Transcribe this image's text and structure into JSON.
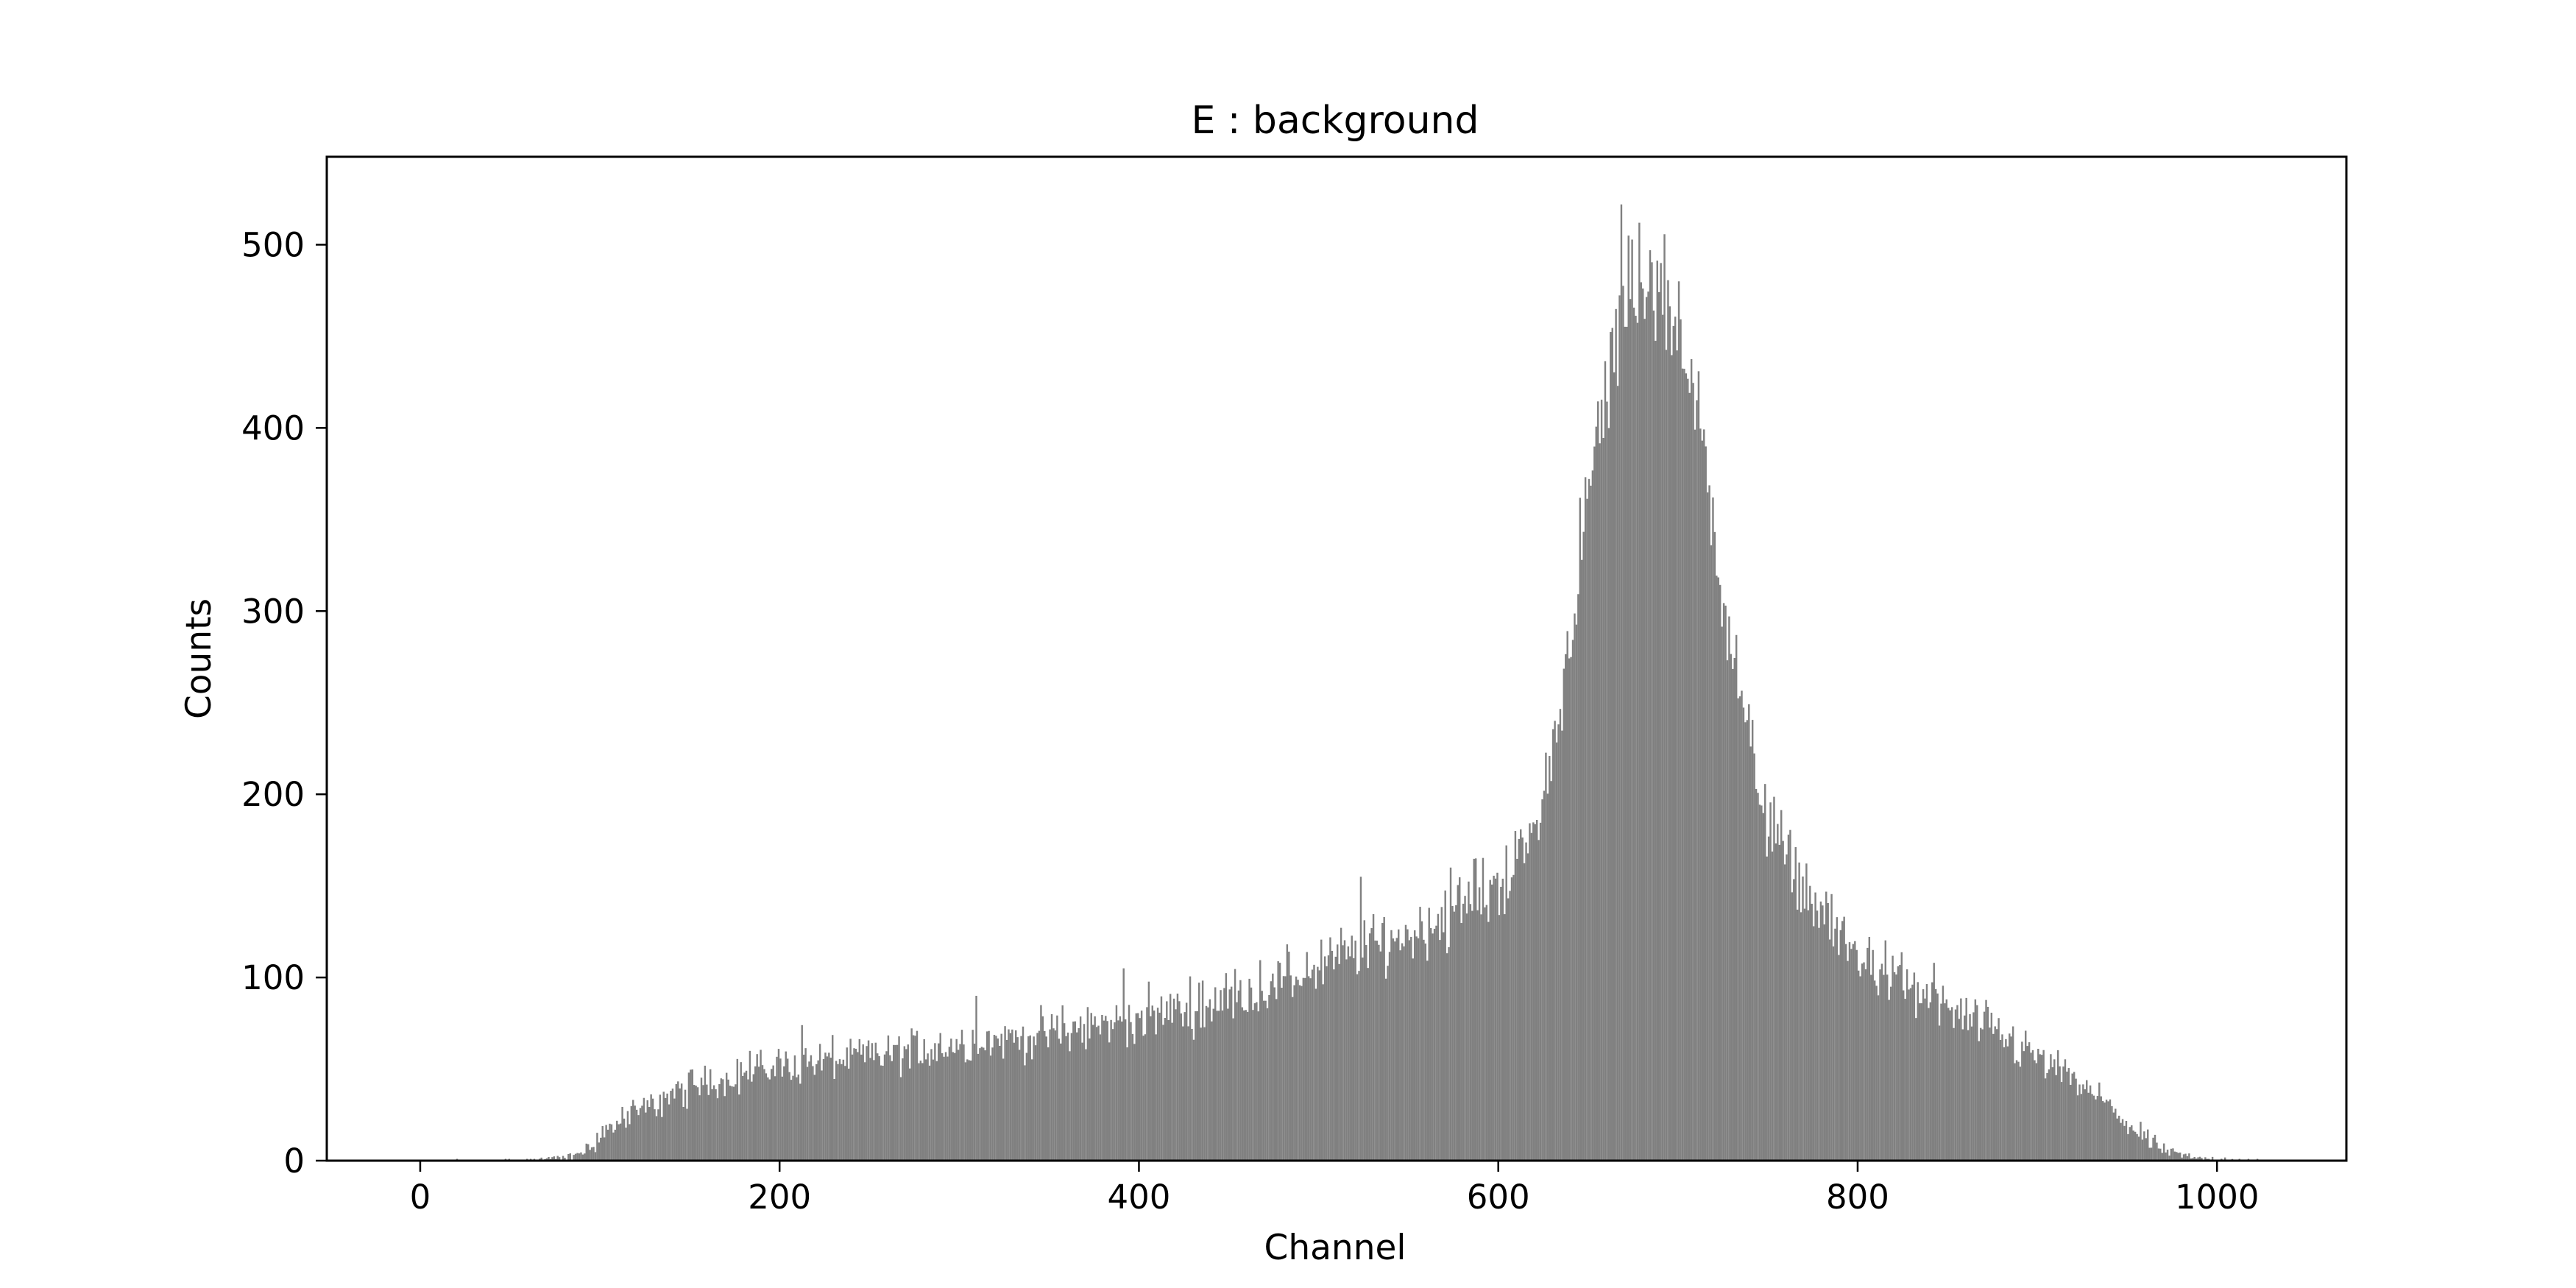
{
  "chart_data": {
    "type": "bar",
    "title": "E : background",
    "xlabel": "Channel",
    "ylabel": "Counts",
    "xlim": [
      -52,
      1072
    ],
    "ylim": [
      0,
      548
    ],
    "xticks": [
      0,
      200,
      400,
      600,
      800,
      1000
    ],
    "yticks": [
      0,
      100,
      200,
      300,
      400,
      500
    ],
    "bar_color": "#808080",
    "grid": false,
    "legend": false,
    "bins": {
      "start": 0,
      "width": 1,
      "count": 1024
    },
    "envelope": [
      [
        0,
        0
      ],
      [
        60,
        0
      ],
      [
        70,
        1
      ],
      [
        85,
        2
      ],
      [
        95,
        8
      ],
      [
        105,
        18
      ],
      [
        120,
        26
      ],
      [
        140,
        36
      ],
      [
        160,
        43
      ],
      [
        180,
        48
      ],
      [
        200,
        52
      ],
      [
        220,
        54
      ],
      [
        240,
        56
      ],
      [
        260,
        58
      ],
      [
        280,
        61
      ],
      [
        300,
        64
      ],
      [
        320,
        66
      ],
      [
        340,
        68
      ],
      [
        360,
        71
      ],
      [
        380,
        74
      ],
      [
        400,
        78
      ],
      [
        420,
        82
      ],
      [
        440,
        86
      ],
      [
        460,
        92
      ],
      [
        480,
        98
      ],
      [
        500,
        106
      ],
      [
        520,
        114
      ],
      [
        540,
        120
      ],
      [
        560,
        128
      ],
      [
        580,
        138
      ],
      [
        600,
        152
      ],
      [
        610,
        162
      ],
      [
        620,
        180
      ],
      [
        630,
        220
      ],
      [
        640,
        290
      ],
      [
        650,
        360
      ],
      [
        660,
        420
      ],
      [
        670,
        460
      ],
      [
        680,
        478
      ],
      [
        690,
        475
      ],
      [
        700,
        455
      ],
      [
        710,
        410
      ],
      [
        720,
        350
      ],
      [
        730,
        280
      ],
      [
        740,
        225
      ],
      [
        750,
        188
      ],
      [
        760,
        165
      ],
      [
        770,
        150
      ],
      [
        780,
        135
      ],
      [
        790,
        122
      ],
      [
        800,
        112
      ],
      [
        820,
        100
      ],
      [
        840,
        88
      ],
      [
        860,
        78
      ],
      [
        880,
        68
      ],
      [
        900,
        56
      ],
      [
        920,
        44
      ],
      [
        940,
        30
      ],
      [
        950,
        20
      ],
      [
        960,
        12
      ],
      [
        970,
        6
      ],
      [
        980,
        3
      ],
      [
        990,
        1
      ],
      [
        1000,
        1
      ],
      [
        1023,
        0
      ]
    ],
    "spikes": [
      [
        668,
        522
      ],
      [
        672,
        505
      ],
      [
        678,
        512
      ],
      [
        684,
        497
      ],
      [
        690,
        490
      ],
      [
        700,
        480
      ],
      [
        523,
        155
      ],
      [
        573,
        160
      ],
      [
        587,
        165
      ],
      [
        808,
        115
      ],
      [
        842,
        108
      ],
      [
        309,
        90
      ],
      [
        391,
        105
      ],
      [
        212,
        74
      ]
    ]
  }
}
